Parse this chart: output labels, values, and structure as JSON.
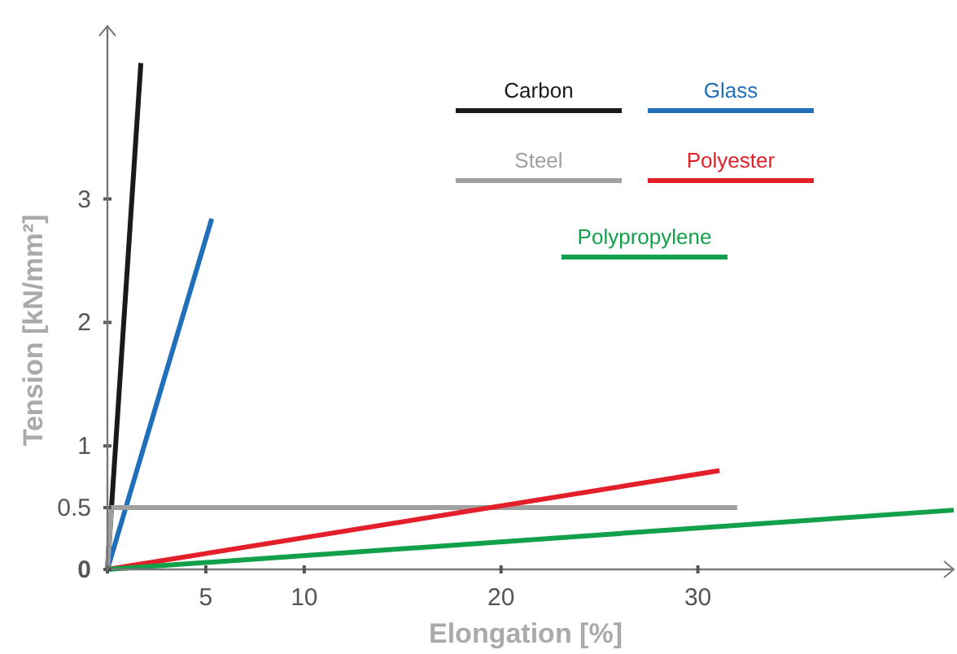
{
  "chart_data": {
    "type": "line",
    "xlabel": "Elongation  [%]",
    "ylabel": "Tension [kN/mm²]",
    "xlim": [
      0,
      43
    ],
    "ylim": [
      0,
      4.4
    ],
    "xticks": [
      {
        "value": 0,
        "label": null
      },
      5,
      10,
      20,
      30
    ],
    "yticks": [
      0,
      0.5,
      1,
      2,
      3
    ],
    "legend": "top right",
    "grid": false,
    "line_style": "solid",
    "series": [
      {
        "name": "Carbon",
        "color": "#1a1a1a",
        "x": [
          0,
          1.7
        ],
        "values": [
          0,
          4.1
        ]
      },
      {
        "name": "Glass",
        "color": "#1f6fba",
        "x": [
          0,
          5.3
        ],
        "values": [
          0,
          2.84
        ]
      },
      {
        "name": "Steel",
        "color": "#a0a0a0",
        "x": [
          0,
          0.2,
          32
        ],
        "values": [
          0,
          0.5,
          0.5
        ]
      },
      {
        "name": "Polyester",
        "color": "#e3202a",
        "x": [
          0,
          31.1
        ],
        "values": [
          0,
          0.8
        ]
      },
      {
        "name": "Polypropylene",
        "color": "#12a04a",
        "x": [
          0,
          43
        ],
        "values": [
          0,
          0.48
        ]
      }
    ]
  }
}
